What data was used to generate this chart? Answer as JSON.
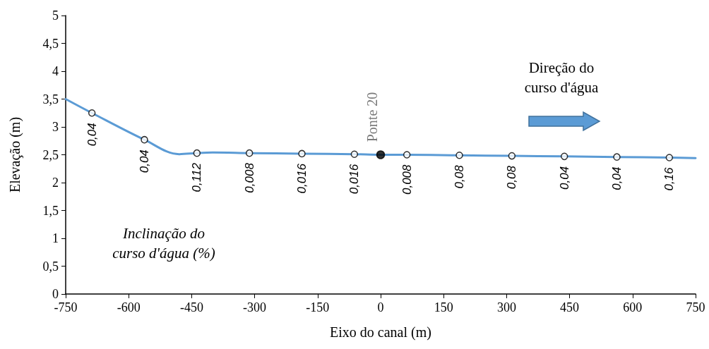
{
  "chart_data": {
    "type": "line",
    "xlabel": "Eixo do canal (m)",
    "ylabel": "Elevação (m)",
    "xlim": [
      -750,
      750
    ],
    "xticks": [
      -750,
      -600,
      -450,
      -300,
      -150,
      0,
      150,
      300,
      450,
      600,
      750
    ],
    "ylim": [
      0,
      5
    ],
    "yticks": [
      0,
      {
        "value": 0.5,
        "label": "0,5"
      },
      1,
      {
        "value": 1.5,
        "label": "1,5"
      },
      2,
      {
        "value": 2.5,
        "label": "2,5"
      },
      3,
      {
        "value": 3.5,
        "label": "3,5"
      },
      4,
      {
        "value": 4.5,
        "label": "4,5"
      },
      5
    ],
    "grid": false,
    "legend": false,
    "series": [
      {
        "color": "#5b9bd5",
        "marker": "none",
        "x": [
          -750,
          -687.5,
          -562.5,
          -480,
          -437.5,
          -400,
          -312.5,
          -187.5,
          -62.5,
          0,
          62.5,
          187.5,
          312.5,
          437.5,
          562.5,
          687.5,
          750
        ],
        "values": [
          3.5,
          3.25,
          2.77,
          2.51,
          2.53,
          2.54,
          2.53,
          2.52,
          2.51,
          2.5,
          2.5,
          2.49,
          2.48,
          2.47,
          2.46,
          2.45,
          2.44
        ]
      },
      {
        "type": "scatter",
        "color": "#ffffff",
        "marker": "circle",
        "x": [
          -687.5,
          -562.5,
          -437.5,
          -312.5,
          -187.5,
          -62.5,
          62.5,
          187.5,
          312.5,
          437.5,
          562.5,
          687.5
        ],
        "values": [
          3.25,
          2.77,
          2.53,
          2.53,
          2.52,
          2.51,
          2.5,
          2.49,
          2.48,
          2.47,
          2.46,
          2.45
        ]
      },
      {
        "type": "scatter",
        "name": "Ponte 20",
        "color": "#000000",
        "marker": "circle",
        "x": [
          0
        ],
        "values": [
          2.5
        ]
      }
    ],
    "annotations": [
      {
        "text": "0,04",
        "x": -687.5,
        "y": 3.25
      },
      {
        "text": "0,04",
        "x": -562.5,
        "y": 2.77
      },
      {
        "text": "0,112",
        "x": -437.5,
        "y": 2.53
      },
      {
        "text": "0,008",
        "x": -312.5,
        "y": 2.53
      },
      {
        "text": "0,016",
        "x": -187.5,
        "y": 2.52
      },
      {
        "text": "0,016",
        "x": -62.5,
        "y": 2.51
      },
      {
        "text": "0,008",
        "x": 62.5,
        "y": 2.5
      },
      {
        "text": "0,08",
        "x": 187.5,
        "y": 2.49
      },
      {
        "text": "0,08",
        "x": 312.5,
        "y": 2.48
      },
      {
        "text": "0,04",
        "x": 437.5,
        "y": 2.47
      },
      {
        "text": "0,04",
        "x": 562.5,
        "y": 2.46
      },
      {
        "text": "0,16",
        "x": 687.5,
        "y": 2.45
      },
      "Inclinação do\ncurso d'água (%)",
      "Direção do\ncurso d'água"
    ]
  }
}
